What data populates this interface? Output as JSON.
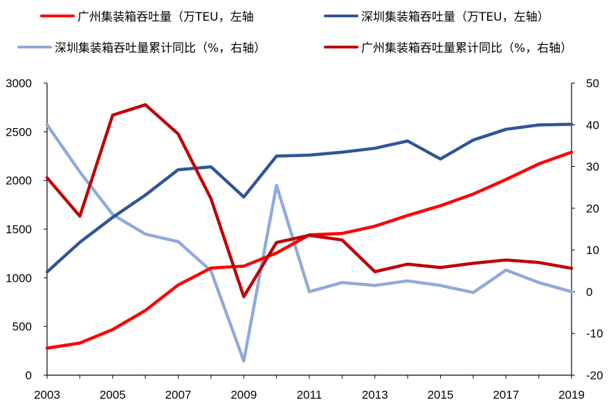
{
  "chart_data": {
    "type": "line",
    "x": [
      2003,
      2004,
      2005,
      2006,
      2007,
      2008,
      2009,
      2010,
      2011,
      2012,
      2013,
      2014,
      2015,
      2016,
      2017,
      2018,
      2019
    ],
    "x_tick_labels": [
      "2003",
      "2005",
      "2007",
      "2009",
      "2011",
      "2013",
      "2015",
      "2017",
      "2019"
    ],
    "y_left_ticks": [
      "0",
      "500",
      "1000",
      "1500",
      "2000",
      "2500",
      "3000"
    ],
    "y_right_ticks": [
      "-20",
      "-10",
      "0",
      "10",
      "20",
      "30",
      "40",
      "50"
    ],
    "ylim_left": [
      0,
      3000
    ],
    "ylim_right": [
      -20,
      50
    ],
    "xlim": [
      2003,
      2019
    ],
    "grid": false,
    "legend_position": "top",
    "series": [
      {
        "name": "广州集装箱吞吐量（万TEU，左轴",
        "axis": "left",
        "color": "#ff0000",
        "values": [
          277,
          330,
          468,
          665,
          926,
          1100,
          1120,
          1255,
          1440,
          1455,
          1530,
          1640,
          1740,
          1860,
          2010,
          2170,
          2290
        ]
      },
      {
        "name": "深圳集装箱吞吐量（万TEU，左轴）",
        "axis": "left",
        "color": "#2f5597",
        "values": [
          1060,
          1365,
          1620,
          1850,
          2110,
          2140,
          1830,
          2250,
          2260,
          2290,
          2330,
          2405,
          2220,
          2415,
          2525,
          2570,
          2577
        ]
      },
      {
        "name": "深圳集装箱吞吐量累计同比（%，右轴）",
        "axis": "right",
        "color": "#8faadc",
        "values": [
          40.0,
          28.7,
          18.5,
          13.8,
          12.0,
          5.0,
          -16.6,
          25.5,
          0.0,
          2.2,
          1.5,
          2.6,
          1.5,
          -0.2,
          5.2,
          2.2,
          0.0
        ]
      },
      {
        "name": "广州集装箱吞吐量累计同比（%，右轴）",
        "axis": "right",
        "color": "#c00000",
        "values": [
          27.3,
          18.1,
          42.3,
          44.8,
          37.8,
          22.3,
          -1.2,
          11.8,
          13.5,
          12.4,
          4.8,
          6.6,
          5.8,
          6.8,
          7.6,
          7.0,
          5.6
        ]
      }
    ]
  }
}
